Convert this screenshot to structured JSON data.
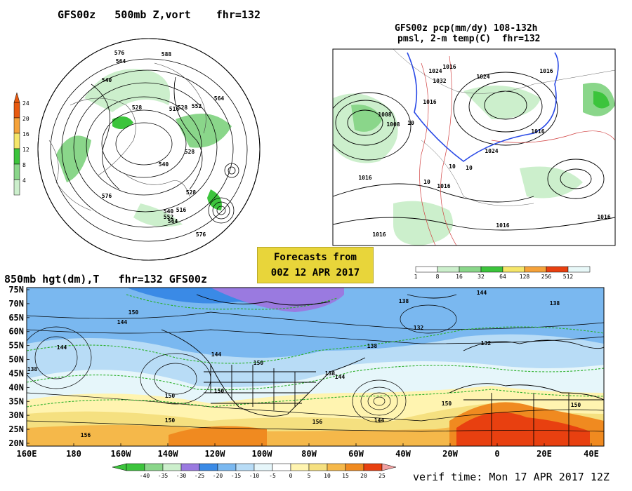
{
  "panel_500mb": {
    "title": "GFS00z   500mb Z,vort    fhr=132",
    "colorbar": {
      "labels": [
        "24",
        "20",
        "16",
        "12",
        "8",
        "4"
      ],
      "colors": [
        "#e85a10",
        "#f5a23a",
        "#f5e66a",
        "#3cc43c",
        "#8ad68a",
        "#ccefcc"
      ]
    },
    "contour_labels": [
      "576",
      "588",
      "564",
      "540",
      "528",
      "516",
      "528",
      "552",
      "564",
      "576",
      "528",
      "540",
      "528",
      "516",
      "540",
      "552",
      "564",
      "576"
    ]
  },
  "panel_precip": {
    "title_line1": "GFS00z pcp(mm/dy) 108-132h",
    "title_line2": "pmsl, 2-m temp(C)  fhr=132",
    "contour_labels": [
      "1024",
      "1016",
      "1032",
      "1024",
      "1016",
      "1008",
      "1008",
      "10",
      "1016",
      "1024",
      "10",
      "1016",
      "10",
      "1016",
      "10",
      "1016",
      "1016",
      "1016",
      "1016"
    ],
    "colorbar": {
      "labels": [
        "1",
        "8",
        "16",
        "32",
        "64",
        "128",
        "256",
        "512"
      ],
      "colors": [
        "#ffffff",
        "#ccefcc",
        "#8ad68a",
        "#3cc43c",
        "#f5e66a",
        "#f5a23a",
        "#e84010",
        "#e8f8f8"
      ]
    }
  },
  "forecast_box": {
    "line1": "Forecasts from",
    "line2": "00Z 12 APR 2017",
    "color": "#e8d53a"
  },
  "panel_850mb": {
    "title": "850mb hgt(dm),T   fhr=132 GFS00z",
    "y_ticks": [
      "75N",
      "70N",
      "65N",
      "60N",
      "55N",
      "50N",
      "45N",
      "40N",
      "35N",
      "30N",
      "25N",
      "20N"
    ],
    "x_ticks": [
      "160E",
      "180",
      "160W",
      "140W",
      "120W",
      "100W",
      "80W",
      "60W",
      "40W",
      "20W",
      "0",
      "20E",
      "40E"
    ],
    "contour_labels": [
      "144",
      "138",
      "150",
      "144",
      "138",
      "144",
      "138",
      "150",
      "144",
      "132",
      "144",
      "138",
      "132",
      "150",
      "138",
      "150",
      "156",
      "150",
      "150",
      "144",
      "150",
      "156"
    ],
    "colorbar": {
      "labels": [
        "-40",
        "-35",
        "-30",
        "-25",
        "-20",
        "-15",
        "-10",
        "-5",
        "0",
        "5",
        "10",
        "15",
        "20",
        "25"
      ],
      "colors": [
        "#3cc43c",
        "#8ad68a",
        "#ccefcc",
        "#9a7ae0",
        "#3a8ae6",
        "#7ab8f0",
        "#b8dcf6",
        "#e6f6fa",
        "#ffffff",
        "#fff4b0",
        "#f5e080",
        "#f5b84a",
        "#f08a20",
        "#e84010"
      ]
    }
  },
  "verif": "verif time: Mon 17 APR 2017 12Z"
}
